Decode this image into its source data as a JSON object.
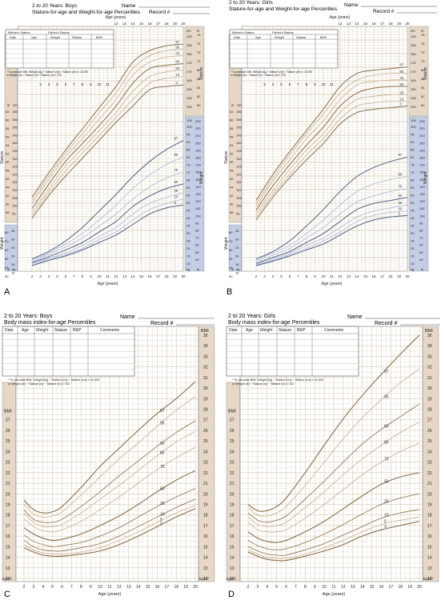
{
  "panels": {
    "A": {
      "letter": "A",
      "title1": "2 to 20 Years: Boys",
      "title2": "Stature-for-age and Weight-for-age Percentiles",
      "name_label": "Name",
      "record_label": "Record #",
      "age_axis": "Age (years)",
      "mother": "Mother's Stature",
      "father": "Father's Stature",
      "date": "Date",
      "age": "Age",
      "weight": "Weight",
      "stature": "Stature",
      "bmi": "BMI*",
      "bmi_note1": "* To calculate BMI: Weight (kg) ÷ Stature (cm) ÷ Stature (cm) x 10,000",
      "bmi_note2": "or Weight (lb) ÷ Stature (in) ÷ Stature (in) x 703",
      "stature_label": "Stature",
      "weight_label": "Weight",
      "in": "in",
      "cm": "cm",
      "kg": "kg",
      "lb": "lb"
    },
    "B": {
      "letter": "B",
      "title1": "2 to 20 Years: Girls",
      "title2": "Stature-for-age and Weight-for-age Percentiles",
      "name_label": "Name",
      "record_label": "Record #",
      "age_axis": "Age (years)",
      "mother": "Mother's Stature",
      "father": "Father's Stature",
      "date": "Date",
      "age": "Age",
      "weight": "Weight",
      "stature": "Stature",
      "bmi": "BMI*",
      "bmi_note1": "* To calculate BMI: Weight (kg) ÷ Stature (cm) ÷ Stature (cm) x 10,000",
      "bmi_note2": "or Weight (lb) ÷ Stature (in) ÷ Stature (in) x 703",
      "stature_label": "Stature",
      "weight_label": "Weight",
      "in": "in",
      "cm": "cm",
      "kg": "kg",
      "lb": "lb"
    },
    "C": {
      "letter": "C",
      "title1": "2 to 20 Years: Boys",
      "title2": "Body mass index-for-age Percentiles",
      "name_label": "Name",
      "record_label": "Record #",
      "age_axis": "Age (years)",
      "date": "Date",
      "age": "Age",
      "weight": "Weight",
      "stature": "Stature",
      "bmi": "BMI*",
      "comments": "Comments",
      "bmi_note1": "* To calculate BMI: Weight (kg) ÷ Stature (cm) ÷ Stature (cm) x 10,000",
      "bmi_note2": "or Weight (lb) ÷ Stature (in) ÷ Stature (in) x 703",
      "bmi_axis": "BMI",
      "unit": "kg/m²"
    },
    "D": {
      "letter": "D",
      "title1": "2 to 20 Years: Girls",
      "title2": "Body mass index-for-age Percentiles",
      "name_label": "Name",
      "record_label": "Record #",
      "age_axis": "Age (years)",
      "date": "Date",
      "age": "Age",
      "weight": "Weight",
      "stature": "Stature",
      "bmi": "BMI*",
      "comments": "Comments",
      "bmi_note1": "* To calculate BMI: Weight (kg) ÷ Stature (cm) ÷ Stature (cm) x 10,000",
      "bmi_note2": "or Weight (lb) ÷ Stature (in) ÷ Stature (in) x 703",
      "bmi_axis": "BMI",
      "unit": "kg/m²"
    }
  },
  "colors": {
    "grid": "#c9b89a",
    "band": "#e6d7c6",
    "blue": "#c3cee4",
    "brown": "#8a6d46",
    "tan": "#c9ae8a",
    "dark_blue": "#4f5f86",
    "light_blue": "#a9b8d6"
  },
  "chart_data": [
    {
      "type": "line",
      "panel": "A",
      "subject": "Boys stature-for-age (cm)",
      "x": [
        2,
        4,
        6,
        8,
        10,
        12,
        14,
        16,
        18,
        20
      ],
      "series": [
        {
          "name": "97",
          "values": [
            95,
            110,
            124,
            137,
            150,
            163,
            178,
            185,
            188,
            189
          ]
        },
        {
          "name": "90",
          "values": [
            93,
            108,
            122,
            134,
            147,
            159,
            174,
            182,
            185,
            186
          ]
        },
        {
          "name": "75",
          "values": [
            91,
            106,
            120,
            131,
            143,
            155,
            170,
            178,
            181,
            182
          ]
        },
        {
          "name": "50",
          "values": [
            88,
            103,
            117,
            128,
            139,
            151,
            165,
            174,
            176,
            177
          ]
        },
        {
          "name": "25",
          "values": [
            86,
            100,
            114,
            125,
            136,
            147,
            160,
            169,
            172,
            173
          ]
        },
        {
          "name": "10",
          "values": [
            84,
            98,
            111,
            122,
            133,
            144,
            155,
            165,
            168,
            169
          ]
        },
        {
          "name": "3",
          "values": [
            82,
            96,
            108,
            119,
            130,
            141,
            151,
            161,
            163,
            164
          ]
        }
      ],
      "ylim": [
        80,
        195
      ]
    },
    {
      "type": "line",
      "panel": "A",
      "subject": "Boys weight-for-age (kg)",
      "x": [
        2,
        4,
        6,
        8,
        10,
        12,
        14,
        16,
        18,
        20
      ],
      "series": [
        {
          "name": "97",
          "values": [
            15,
            20,
            27,
            36,
            47,
            58,
            70,
            80,
            88,
            94
          ]
        },
        {
          "name": "90",
          "values": [
            14,
            19,
            25,
            32,
            41,
            51,
            62,
            71,
            78,
            83
          ]
        },
        {
          "name": "75",
          "values": [
            13,
            18,
            23,
            29,
            37,
            45,
            55,
            63,
            69,
            73
          ]
        },
        {
          "name": "50",
          "values": [
            12.5,
            16.5,
            21,
            26,
            33,
            40,
            50,
            57,
            62,
            65
          ]
        },
        {
          "name": "25",
          "values": [
            12,
            15.5,
            19,
            24,
            30,
            36,
            45,
            52,
            56,
            59
          ]
        },
        {
          "name": "10",
          "values": [
            11,
            15,
            18,
            22,
            28,
            33,
            41,
            48,
            52,
            55
          ]
        },
        {
          "name": "3",
          "values": [
            10.5,
            14,
            17,
            21,
            26,
            31,
            38,
            45,
            49,
            51
          ]
        }
      ],
      "ylim": [
        10,
        105
      ]
    },
    {
      "type": "line",
      "panel": "B",
      "subject": "Girls stature-for-age (cm)",
      "x": [
        2,
        4,
        6,
        8,
        10,
        12,
        14,
        16,
        18,
        20
      ],
      "series": [
        {
          "name": "97",
          "values": [
            93,
            109,
            123,
            136,
            149,
            163,
            171,
            173,
            174,
            175
          ]
        },
        {
          "name": "90",
          "values": [
            91,
            107,
            121,
            134,
            146,
            159,
            167,
            170,
            171,
            171
          ]
        },
        {
          "name": "75",
          "values": [
            89,
            105,
            118,
            131,
            142,
            155,
            164,
            166,
            167,
            167
          ]
        },
        {
          "name": "50",
          "values": [
            87,
            102,
            115,
            127,
            138,
            151,
            159,
            162,
            163,
            163
          ]
        },
        {
          "name": "25",
          "values": [
            85,
            99,
            112,
            124,
            134,
            147,
            155,
            157,
            158,
            158
          ]
        },
        {
          "name": "10",
          "values": [
            83,
            97,
            109,
            121,
            131,
            143,
            151,
            153,
            154,
            154
          ]
        },
        {
          "name": "3",
          "values": [
            81,
            95,
            107,
            118,
            128,
            140,
            147,
            149,
            150,
            151
          ]
        }
      ],
      "ylim": [
        80,
        195
      ]
    },
    {
      "type": "line",
      "panel": "B",
      "subject": "Girls weight-for-age (kg)",
      "x": [
        2,
        4,
        6,
        8,
        10,
        12,
        14,
        16,
        18,
        20
      ],
      "series": [
        {
          "name": "97",
          "values": [
            15,
            20,
            27,
            37,
            48,
            60,
            70,
            76,
            80,
            83
          ]
        },
        {
          "name": "90",
          "values": [
            14,
            19,
            24,
            32,
            41,
            51,
            60,
            65,
            68,
            70
          ]
        },
        {
          "name": "75",
          "values": [
            13,
            17.5,
            22,
            29,
            36,
            45,
            53,
            57,
            60,
            62
          ]
        },
        {
          "name": "50",
          "values": [
            12,
            16,
            20,
            26,
            32,
            40,
            48,
            52,
            54,
            56
          ]
        },
        {
          "name": "25",
          "values": [
            11.5,
            15,
            19,
            24,
            29,
            36,
            43,
            47,
            49,
            51
          ]
        },
        {
          "name": "10",
          "values": [
            11,
            14,
            18,
            22,
            27,
            33,
            40,
            44,
            46,
            47
          ]
        },
        {
          "name": "3",
          "values": [
            10.5,
            13.5,
            17,
            21,
            25,
            31,
            37,
            41,
            43,
            44
          ]
        }
      ],
      "ylim": [
        10,
        105
      ]
    },
    {
      "type": "line",
      "panel": "C",
      "subject": "Boys BMI-for-age (kg/m²)",
      "x": [
        2,
        3,
        4,
        5,
        6,
        8,
        10,
        12,
        14,
        16,
        18,
        20
      ],
      "series": [
        {
          "name": "97",
          "values": [
            19.4,
            18.5,
            18.2,
            18.3,
            18.8,
            20.6,
            22.6,
            24.3,
            26.0,
            27.6,
            29.0,
            30.6
          ]
        },
        {
          "name": "95",
          "values": [
            19.0,
            18.1,
            17.8,
            17.9,
            18.3,
            19.9,
            21.6,
            23.3,
            24.8,
            26.4,
            27.9,
            29.2
          ]
        },
        {
          "name": "90",
          "values": [
            18.5,
            17.6,
            17.3,
            17.3,
            17.6,
            18.8,
            20.2,
            21.7,
            23.1,
            24.5,
            25.8,
            26.9
          ]
        },
        {
          "name": "85",
          "values": [
            18.2,
            17.3,
            16.9,
            16.9,
            17.1,
            18.2,
            19.5,
            20.8,
            22.2,
            23.6,
            24.9,
            25.9
          ]
        },
        {
          "name": "75",
          "values": [
            17.6,
            16.9,
            16.5,
            16.4,
            16.6,
            17.4,
            18.5,
            19.7,
            21.0,
            22.3,
            23.4,
            24.4
          ]
        },
        {
          "name": "50",
          "values": [
            16.8,
            16.2,
            15.8,
            15.6,
            15.7,
            16.2,
            17.0,
            17.9,
            19.0,
            20.2,
            21.3,
            22.2
          ]
        },
        {
          "name": "25",
          "values": [
            16.1,
            15.5,
            15.2,
            15.0,
            15.1,
            15.4,
            16.0,
            16.8,
            17.8,
            18.8,
            19.7,
            20.5
          ]
        },
        {
          "name": "10",
          "values": [
            15.6,
            15.0,
            14.7,
            14.6,
            14.6,
            14.9,
            15.3,
            16.0,
            16.9,
            17.8,
            18.7,
            19.5
          ]
        },
        {
          "name": "5",
          "values": [
            15.2,
            14.7,
            14.4,
            14.3,
            14.3,
            14.5,
            14.9,
            15.6,
            16.4,
            17.3,
            18.2,
            18.9
          ]
        },
        {
          "name": "3",
          "values": [
            14.9,
            14.5,
            14.2,
            14.1,
            14.1,
            14.3,
            14.6,
            15.2,
            16.0,
            16.9,
            17.8,
            18.6
          ]
        }
      ],
      "ylim": [
        12,
        35
      ]
    },
    {
      "type": "line",
      "panel": "D",
      "subject": "Girls BMI-for-age (kg/m²)",
      "x": [
        2,
        3,
        4,
        5,
        6,
        8,
        10,
        12,
        14,
        16,
        18,
        20
      ],
      "series": [
        {
          "name": "97",
          "values": [
            19.0,
            18.4,
            18.4,
            18.8,
            19.6,
            22.0,
            24.6,
            27.1,
            29.3,
            31.3,
            33.2,
            35.0
          ]
        },
        {
          "name": "95",
          "values": [
            18.7,
            18.0,
            17.9,
            18.2,
            18.8,
            20.8,
            23.0,
            25.2,
            27.2,
            28.9,
            30.5,
            31.8
          ]
        },
        {
          "name": "90",
          "values": [
            18.2,
            17.5,
            17.3,
            17.5,
            17.9,
            19.5,
            21.2,
            23.0,
            24.7,
            26.1,
            27.3,
            28.5
          ]
        },
        {
          "name": "85",
          "values": [
            17.8,
            17.1,
            16.9,
            17.0,
            17.3,
            18.7,
            20.2,
            21.8,
            23.3,
            24.6,
            25.8,
            26.8
          ]
        },
        {
          "name": "75",
          "values": [
            17.3,
            16.6,
            16.4,
            16.4,
            16.6,
            17.7,
            19.0,
            20.4,
            21.8,
            23.0,
            24.0,
            24.8
          ]
        },
        {
          "name": "50",
          "values": [
            16.4,
            15.8,
            15.5,
            15.4,
            15.6,
            16.4,
            17.4,
            18.6,
            19.8,
            20.9,
            21.6,
            22.0
          ]
        },
        {
          "name": "25",
          "values": [
            15.6,
            15.1,
            14.8,
            14.7,
            14.8,
            15.4,
            16.2,
            17.1,
            18.1,
            19.0,
            19.6,
            20.0
          ]
        },
        {
          "name": "10",
          "values": [
            15.0,
            14.6,
            14.3,
            14.2,
            14.2,
            14.7,
            15.3,
            16.1,
            16.9,
            17.7,
            18.2,
            18.5
          ]
        },
        {
          "name": "5",
          "values": [
            14.7,
            14.3,
            14.0,
            13.9,
            13.9,
            14.3,
            14.9,
            15.6,
            16.4,
            17.1,
            17.5,
            17.8
          ]
        },
        {
          "name": "3",
          "values": [
            14.5,
            14.1,
            13.8,
            13.7,
            13.7,
            14.1,
            14.6,
            15.2,
            16.0,
            16.6,
            17.0,
            17.4
          ]
        }
      ],
      "ylim": [
        12,
        35
      ]
    }
  ]
}
